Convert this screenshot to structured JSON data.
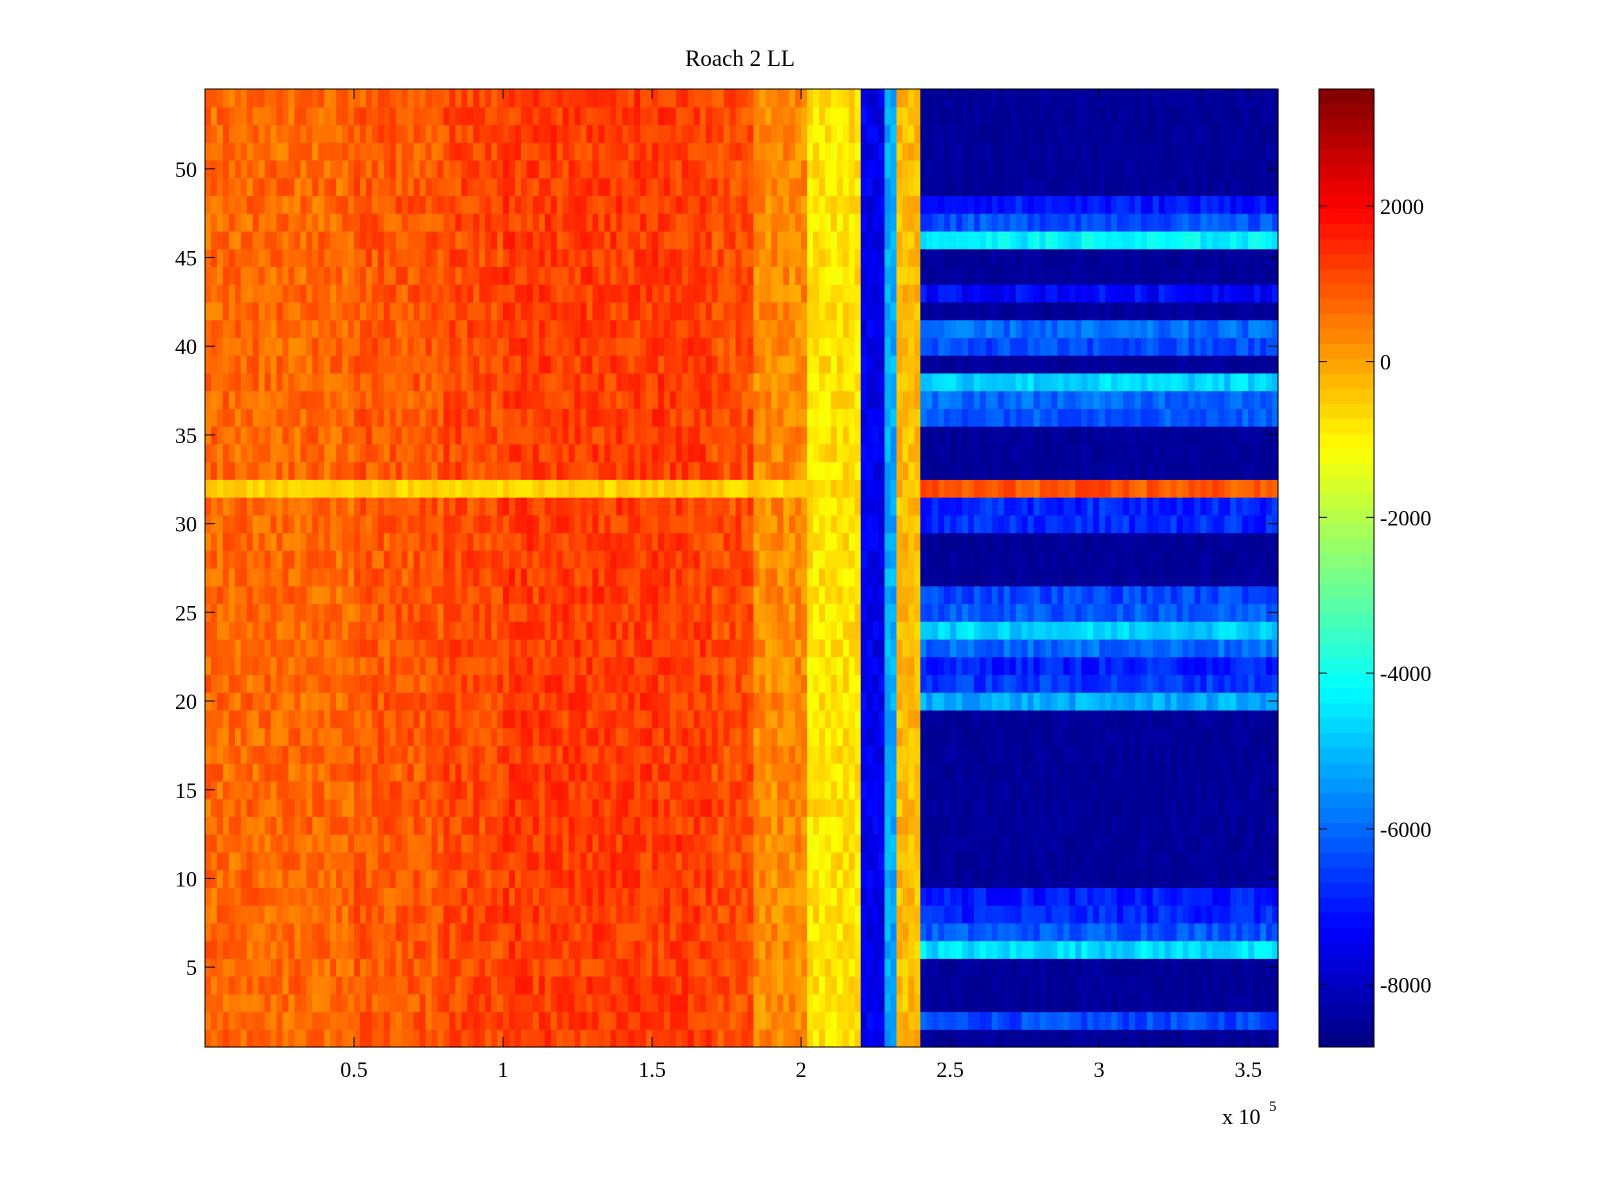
{
  "chart_data": {
    "type": "heatmap",
    "title": "Roach 2 LL",
    "xlabel": "",
    "ylabel": "",
    "x_multiplier_label": "x 10",
    "x_multiplier_exponent": "5",
    "xlim": [
      0.0,
      3.6
    ],
    "ylim": [
      0.5,
      54.5
    ],
    "x_ticks": [
      0.5,
      1,
      1.5,
      2,
      2.5,
      3,
      3.5
    ],
    "x_tick_labels": [
      "0.5",
      "1",
      "1.5",
      "2",
      "2.5",
      "3",
      "3.5"
    ],
    "y_ticks": [
      5,
      10,
      15,
      20,
      25,
      30,
      35,
      40,
      45,
      50
    ],
    "y_tick_labels": [
      "5",
      "10",
      "15",
      "20",
      "25",
      "30",
      "35",
      "40",
      "45",
      "50"
    ],
    "colorbar": {
      "colormap": "jet",
      "clim": [
        -8800,
        3500
      ],
      "ticks": [
        2000,
        0,
        -2000,
        -4000,
        -6000,
        -8000
      ],
      "tick_labels": [
        "2000",
        "0",
        "-2000",
        "-4000",
        "-6000",
        "-8000"
      ]
    },
    "rows": 54,
    "columns_x_range": [
      0.0,
      3.6
    ],
    "column_profile": [
      {
        "x0": 0.0,
        "x1": 0.5,
        "value": 700
      },
      {
        "x0": 0.5,
        "x1": 0.8,
        "value": 900
      },
      {
        "x0": 0.8,
        "x1": 1.0,
        "value": 1100
      },
      {
        "x0": 1.0,
        "x1": 1.7,
        "value": 1250
      },
      {
        "x0": 1.7,
        "x1": 1.85,
        "value": 1050
      },
      {
        "x0": 1.85,
        "x1": 2.03,
        "value": 300
      },
      {
        "x0": 2.03,
        "x1": 2.2,
        "value": -800
      },
      {
        "x0": 2.2,
        "x1": 2.28,
        "value": -7500
      },
      {
        "x0": 2.28,
        "x1": 2.32,
        "value": -5200
      },
      {
        "x0": 2.32,
        "x1": 2.4,
        "value": -300
      },
      {
        "x0": 2.4,
        "x1": 3.6,
        "value": -8500
      }
    ],
    "bright_rows_right_region": [
      {
        "row": 2,
        "value": -6400
      },
      {
        "row": 6,
        "value": -4600
      },
      {
        "row": 7,
        "value": -6200
      },
      {
        "row": 8,
        "value": -6800
      },
      {
        "row": 9,
        "value": -7000
      },
      {
        "row": 20,
        "value": -5200
      },
      {
        "row": 21,
        "value": -6600
      },
      {
        "row": 22,
        "value": -6900
      },
      {
        "row": 23,
        "value": -6000
      },
      {
        "row": 24,
        "value": -4700
      },
      {
        "row": 25,
        "value": -6200
      },
      {
        "row": 26,
        "value": -6400
      },
      {
        "row": 30,
        "value": -6800
      },
      {
        "row": 31,
        "value": -6800
      },
      {
        "row": 32,
        "value": 900
      },
      {
        "row": 36,
        "value": -6200
      },
      {
        "row": 37,
        "value": -6000
      },
      {
        "row": 38,
        "value": -4700
      },
      {
        "row": 40,
        "value": -6400
      },
      {
        "row": 41,
        "value": -6000
      },
      {
        "row": 43,
        "value": -7200
      },
      {
        "row": 46,
        "value": -4300
      },
      {
        "row": 47,
        "value": -6300
      },
      {
        "row": 48,
        "value": -7000
      }
    ],
    "anomalous_row": {
      "row": 32,
      "left_value": -600
    }
  }
}
